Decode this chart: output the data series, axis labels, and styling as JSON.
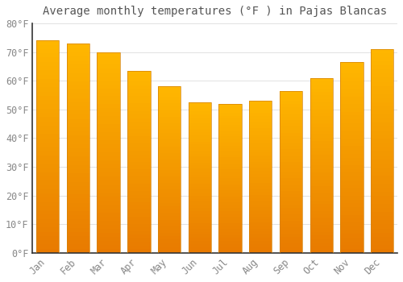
{
  "title": "Average monthly temperatures (°F ) in Pajas Blancas",
  "months": [
    "Jan",
    "Feb",
    "Mar",
    "Apr",
    "May",
    "Jun",
    "Jul",
    "Aug",
    "Sep",
    "Oct",
    "Nov",
    "Dec"
  ],
  "values": [
    74,
    73,
    70,
    63.5,
    58,
    52.5,
    52,
    53,
    56.5,
    61,
    66.5,
    71
  ],
  "bar_color_top": "#FFB800",
  "bar_color_bottom": "#E87A00",
  "bar_edge_color": "#D4830A",
  "background_color": "#FFFFFF",
  "grid_color": "#DDDDDD",
  "ylim": [
    0,
    80
  ],
  "yticks": [
    0,
    10,
    20,
    30,
    40,
    50,
    60,
    70,
    80
  ],
  "title_fontsize": 10,
  "tick_fontsize": 8.5,
  "tick_color": "#888888",
  "font_family": "monospace"
}
